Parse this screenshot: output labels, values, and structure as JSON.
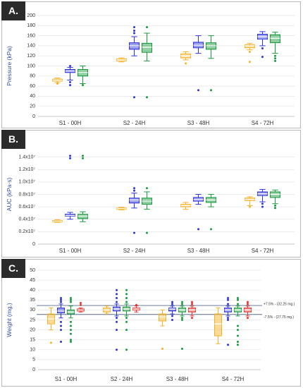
{
  "chart_data": [
    {
      "panel_label": "A.",
      "type": "box",
      "ylabel": "Pressure (kPa)",
      "ylim": [
        0,
        200
      ],
      "yticks": [
        {
          "value": 0,
          "label": "0"
        },
        {
          "value": 20,
          "label": "20"
        },
        {
          "value": 40,
          "label": "40"
        },
        {
          "value": 60,
          "label": "60"
        },
        {
          "value": 80,
          "label": "80"
        },
        {
          "value": 100,
          "label": "100"
        },
        {
          "value": 120,
          "label": "120"
        },
        {
          "value": 140,
          "label": "140"
        },
        {
          "value": 160,
          "label": "160"
        },
        {
          "value": 180,
          "label": "180"
        },
        {
          "value": 200,
          "label": "200"
        }
      ],
      "categories": [
        "S1 - 00H",
        "S2 - 24H",
        "S3 - 48H",
        "S4 - 72H"
      ],
      "series": [
        {
          "color": "#f5b229",
          "boxes": [
            {
              "min": 67,
              "q1": 70,
              "median": 72,
              "q3": 74,
              "max": 76,
              "outliers": [
                65
              ]
            },
            {
              "min": 108,
              "q1": 110,
              "median": 112,
              "q3": 114,
              "max": 116,
              "outliers": []
            },
            {
              "min": 112,
              "q1": 116,
              "median": 120,
              "q3": 124,
              "max": 128,
              "outliers": [
                105
              ]
            },
            {
              "min": 132,
              "q1": 136,
              "median": 140,
              "q3": 142,
              "max": 145,
              "outliers": [
                108,
                128
              ]
            }
          ]
        },
        {
          "color": "#2d35d8",
          "boxes": [
            {
              "min": 72,
              "q1": 87,
              "median": 90,
              "q3": 93,
              "max": 97,
              "outliers": [
                62,
                68,
                100
              ]
            },
            {
              "min": 120,
              "q1": 133,
              "median": 140,
              "q3": 146,
              "max": 158,
              "outliers": [
                38,
                165,
                170,
                177
              ]
            },
            {
              "min": 125,
              "q1": 136,
              "median": 141,
              "q3": 147,
              "max": 160,
              "outliers": [
                52
              ]
            },
            {
              "min": 140,
              "q1": 153,
              "median": 158,
              "q3": 163,
              "max": 168,
              "outliers": [
                118,
                135
              ]
            }
          ]
        },
        {
          "color": "#1a9a3e",
          "boxes": [
            {
              "min": 65,
              "q1": 80,
              "median": 87,
              "q3": 93,
              "max": 100,
              "outliers": [
                62
              ]
            },
            {
              "min": 110,
              "q1": 127,
              "median": 137,
              "q3": 145,
              "max": 165,
              "outliers": [
                38,
                177
              ]
            },
            {
              "min": 115,
              "q1": 133,
              "median": 140,
              "q3": 146,
              "max": 160,
              "outliers": [
                52
              ]
            },
            {
              "min": 125,
              "q1": 146,
              "median": 155,
              "q3": 162,
              "max": 167,
              "outliers": [
                110,
                115,
                120
              ]
            }
          ]
        }
      ]
    },
    {
      "panel_label": "B.",
      "type": "box",
      "ylabel": "AUC (kPa·s)",
      "ylim": [
        0,
        1.6
      ],
      "yticks": [
        {
          "value": 0,
          "label": "0"
        },
        {
          "value": 0.2,
          "label": "0.2x10⁷"
        },
        {
          "value": 0.4,
          "label": "0.4x10⁷"
        },
        {
          "value": 0.6,
          "label": "0.6x10⁷"
        },
        {
          "value": 0.8,
          "label": "0.8x10⁷"
        },
        {
          "value": 1.0,
          "label": "1.0x10⁷"
        },
        {
          "value": 1.2,
          "label": "1.2x10⁷"
        },
        {
          "value": 1.4,
          "label": "1.4x10⁷"
        }
      ],
      "categories": [
        "S1 - 00H",
        "S2 - 24H",
        "S3 - 48H",
        "S4 - 72H"
      ],
      "series": [
        {
          "color": "#f5b229",
          "boxes": [
            {
              "min": 0.35,
              "q1": 0.36,
              "median": 0.37,
              "q3": 0.38,
              "max": 0.39,
              "outliers": []
            },
            {
              "min": 0.55,
              "q1": 0.56,
              "median": 0.57,
              "q3": 0.58,
              "max": 0.59,
              "outliers": []
            },
            {
              "min": 0.56,
              "q1": 0.6,
              "median": 0.62,
              "q3": 0.64,
              "max": 0.67,
              "outliers": []
            },
            {
              "min": 0.62,
              "q1": 0.7,
              "median": 0.72,
              "q3": 0.74,
              "max": 0.76,
              "outliers": [
                0.6
              ]
            }
          ]
        },
        {
          "color": "#2d35d8",
          "boxes": [
            {
              "min": 0.4,
              "q1": 0.45,
              "median": 0.46,
              "q3": 0.48,
              "max": 0.51,
              "outliers": [
                1.38,
                1.42
              ]
            },
            {
              "min": 0.58,
              "q1": 0.66,
              "median": 0.71,
              "q3": 0.74,
              "max": 0.82,
              "outliers": [
                0.18,
                0.86,
                0.9
              ]
            },
            {
              "min": 0.64,
              "q1": 0.69,
              "median": 0.72,
              "q3": 0.75,
              "max": 0.8,
              "outliers": [
                0.24
              ]
            },
            {
              "min": 0.68,
              "q1": 0.78,
              "median": 0.81,
              "q3": 0.84,
              "max": 0.88,
              "outliers": [
                0.6,
                0.65
              ]
            }
          ]
        },
        {
          "color": "#1a9a3e",
          "boxes": [
            {
              "min": 0.36,
              "q1": 0.41,
              "median": 0.45,
              "q3": 0.48,
              "max": 0.52,
              "outliers": [
                1.38,
                1.42
              ]
            },
            {
              "min": 0.56,
              "q1": 0.64,
              "median": 0.69,
              "q3": 0.74,
              "max": 0.84,
              "outliers": [
                0.18,
                0.9
              ]
            },
            {
              "min": 0.6,
              "q1": 0.67,
              "median": 0.71,
              "q3": 0.75,
              "max": 0.8,
              "outliers": [
                0.24
              ]
            },
            {
              "min": 0.65,
              "q1": 0.75,
              "median": 0.8,
              "q3": 0.84,
              "max": 0.87,
              "outliers": [
                0.58,
                0.62
              ]
            }
          ]
        }
      ]
    },
    {
      "panel_label": "C.",
      "type": "box",
      "ylabel": "Weight (mg.)",
      "ylim": [
        0,
        50
      ],
      "yticks": [
        {
          "value": 0,
          "label": "0"
        },
        {
          "value": 5,
          "label": "5"
        },
        {
          "value": 10,
          "label": "10"
        },
        {
          "value": 15,
          "label": "15"
        },
        {
          "value": 20,
          "label": "20"
        },
        {
          "value": 25,
          "label": "25"
        },
        {
          "value": 30,
          "label": "30"
        },
        {
          "value": 35,
          "label": "35"
        },
        {
          "value": 40,
          "label": "40"
        },
        {
          "value": 45,
          "label": "45"
        },
        {
          "value": 50,
          "label": "50"
        }
      ],
      "categories": [
        "S1 - 00H",
        "S2 - 24H",
        "S3 - 48H",
        "S4 - 72H"
      ],
      "reference_lines": [
        {
          "value": 32.25,
          "label": "+7.5% - (32.25 mg.)"
        },
        {
          "value": 27.75,
          "label": "-7.5% - (27.75 mg.)"
        }
      ],
      "series": [
        {
          "color": "#f5b229",
          "boxes": [
            {
              "min": 20,
              "q1": 23,
              "median": 25.5,
              "q3": 28,
              "max": 31,
              "outliers": [
                13.5
              ]
            },
            {
              "min": 28,
              "q1": 29,
              "median": 30,
              "q3": 31,
              "max": 32,
              "outliers": []
            },
            {
              "min": 22,
              "q1": 24.5,
              "median": 26.5,
              "q3": 28,
              "max": 30,
              "outliers": [
                10.5
              ]
            },
            {
              "min": 13,
              "q1": 17,
              "median": 23,
              "q3": 28,
              "max": 31,
              "outliers": []
            }
          ]
        },
        {
          "color": "#2d35d8",
          "boxes": [
            {
              "min": 26,
              "q1": 28.5,
              "median": 29.5,
              "q3": 31,
              "max": 33,
              "outliers": [
                14,
                20,
                22,
                24,
                34,
                35,
                36
              ]
            },
            {
              "min": 27,
              "q1": 29.5,
              "median": 30.5,
              "q3": 31.5,
              "max": 33,
              "outliers": [
                10,
                20,
                24,
                26,
                34,
                36,
                38,
                40
              ]
            },
            {
              "min": 28,
              "q1": 29.5,
              "median": 30.5,
              "q3": 31,
              "max": 32,
              "outliers": [
                25,
                27,
                33,
                34
              ]
            },
            {
              "min": 27,
              "q1": 29,
              "median": 30,
              "q3": 31,
              "max": 32,
              "outliers": [
                12.5,
                25,
                26,
                33,
                35,
                36
              ]
            }
          ]
        },
        {
          "color": "#1a9a3e",
          "boxes": [
            {
              "min": 26,
              "q1": 28,
              "median": 29,
              "q3": 30,
              "max": 32,
              "outliers": [
                14,
                15,
                18,
                20,
                22,
                24,
                34,
                35,
                36
              ]
            },
            {
              "min": 27,
              "q1": 29.5,
              "median": 30.5,
              "q3": 31.5,
              "max": 33,
              "outliers": [
                10,
                20,
                24,
                26,
                34,
                36,
                38,
                40
              ]
            },
            {
              "min": 27,
              "q1": 29,
              "median": 30,
              "q3": 31,
              "max": 32,
              "outliers": [
                10.5,
                25,
                26,
                33,
                34
              ]
            },
            {
              "min": 27,
              "q1": 29,
              "median": 30,
              "q3": 31,
              "max": 32,
              "outliers": [
                12.5,
                14,
                17,
                20,
                22,
                33,
                35,
                36
              ]
            }
          ]
        },
        {
          "color": "#e8322b",
          "boxes": [
            {
              "min": 29,
              "q1": 29.5,
              "median": 30,
              "q3": 30.5,
              "max": 31,
              "outliers": [
                32.5,
                33.5
              ]
            },
            {
              "min": 29,
              "q1": 30,
              "median": 30.5,
              "q3": 31,
              "max": 32,
              "outliers": [
                32.5
              ]
            },
            {
              "min": 27,
              "q1": 29,
              "median": 30,
              "q3": 31,
              "max": 32,
              "outliers": [
                26,
                33,
                34
              ]
            },
            {
              "min": 27,
              "q1": 29,
              "median": 30,
              "q3": 31,
              "max": 32,
              "outliers": [
                26,
                33,
                34
              ]
            }
          ]
        }
      ]
    }
  ]
}
